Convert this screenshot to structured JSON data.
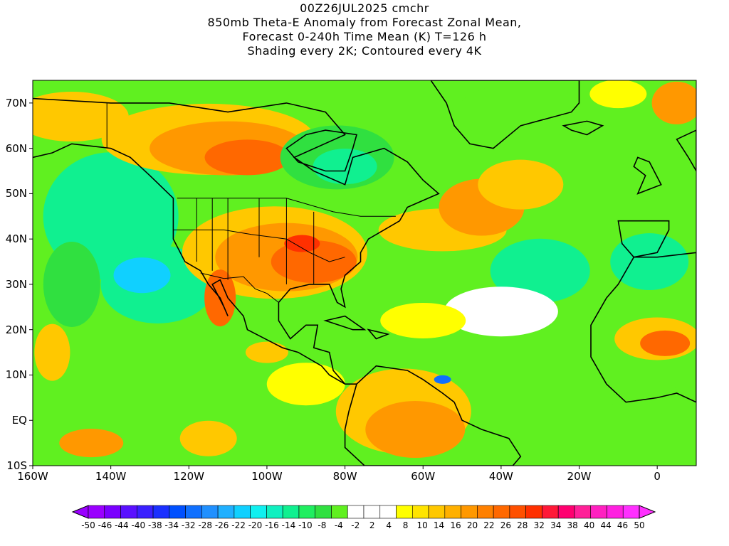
{
  "title": {
    "line1": "00Z26JUL2025 cmchr",
    "line2": "850mb Theta-E Anomaly from Forecast Zonal Mean,",
    "line3": "Forecast 0-240h Time Mean (K) T=126 h",
    "line4": "Shading every 2K; Contoured every 4K"
  },
  "map": {
    "lat_range": [
      -10,
      75
    ],
    "lon_range": [
      -160,
      10
    ],
    "y_ticks": [
      "70N",
      "60N",
      "50N",
      "40N",
      "30N",
      "20N",
      "10N",
      "EQ",
      "10S"
    ],
    "x_ticks": [
      "160W",
      "140W",
      "120W",
      "100W",
      "80W",
      "60W",
      "40W",
      "20W",
      "0"
    ]
  },
  "colorbar": {
    "labels": [
      "-50",
      "-46",
      "-44",
      "-40",
      "-38",
      "-34",
      "-32",
      "-28",
      "-26",
      "-22",
      "-20",
      "-16",
      "-14",
      "-10",
      "-8",
      "-4",
      "-2",
      "2",
      "4",
      "8",
      "10",
      "14",
      "16",
      "20",
      "22",
      "26",
      "28",
      "32",
      "34",
      "38",
      "40",
      "44",
      "46",
      "50"
    ],
    "colors": [
      "#9a00ff",
      "#7a00ff",
      "#5a10ff",
      "#3a20ff",
      "#1a30ff",
      "#0050ff",
      "#1070ff",
      "#2090ff",
      "#20b0ff",
      "#10d0ff",
      "#10f0f0",
      "#10f0c0",
      "#10f090",
      "#20ee60",
      "#30e040",
      "#60f020",
      "#ffffff",
      "#ffffff",
      "#ffffff",
      "#ffff00",
      "#ffe400",
      "#ffc800",
      "#ffb000",
      "#ff9800",
      "#ff8000",
      "#ff6800",
      "#ff5000",
      "#ff3000",
      "#ff1838",
      "#ff0070",
      "#ff2098",
      "#ff20c0",
      "#ff20e0",
      "#ff30ff"
    ],
    "left_tip_color": "#9a00ff",
    "right_tip_color": "#ff30ff"
  },
  "palette": {
    "green": "#60f020",
    "light_green": "#30e040",
    "teal": "#10f090",
    "cyan": "#10d0ff",
    "yellow": "#ffff00",
    "gold": "#ffc800",
    "orange": "#ff9800",
    "dark_orange": "#ff6800",
    "red": "#ff3000",
    "blue": "#1070ff"
  }
}
